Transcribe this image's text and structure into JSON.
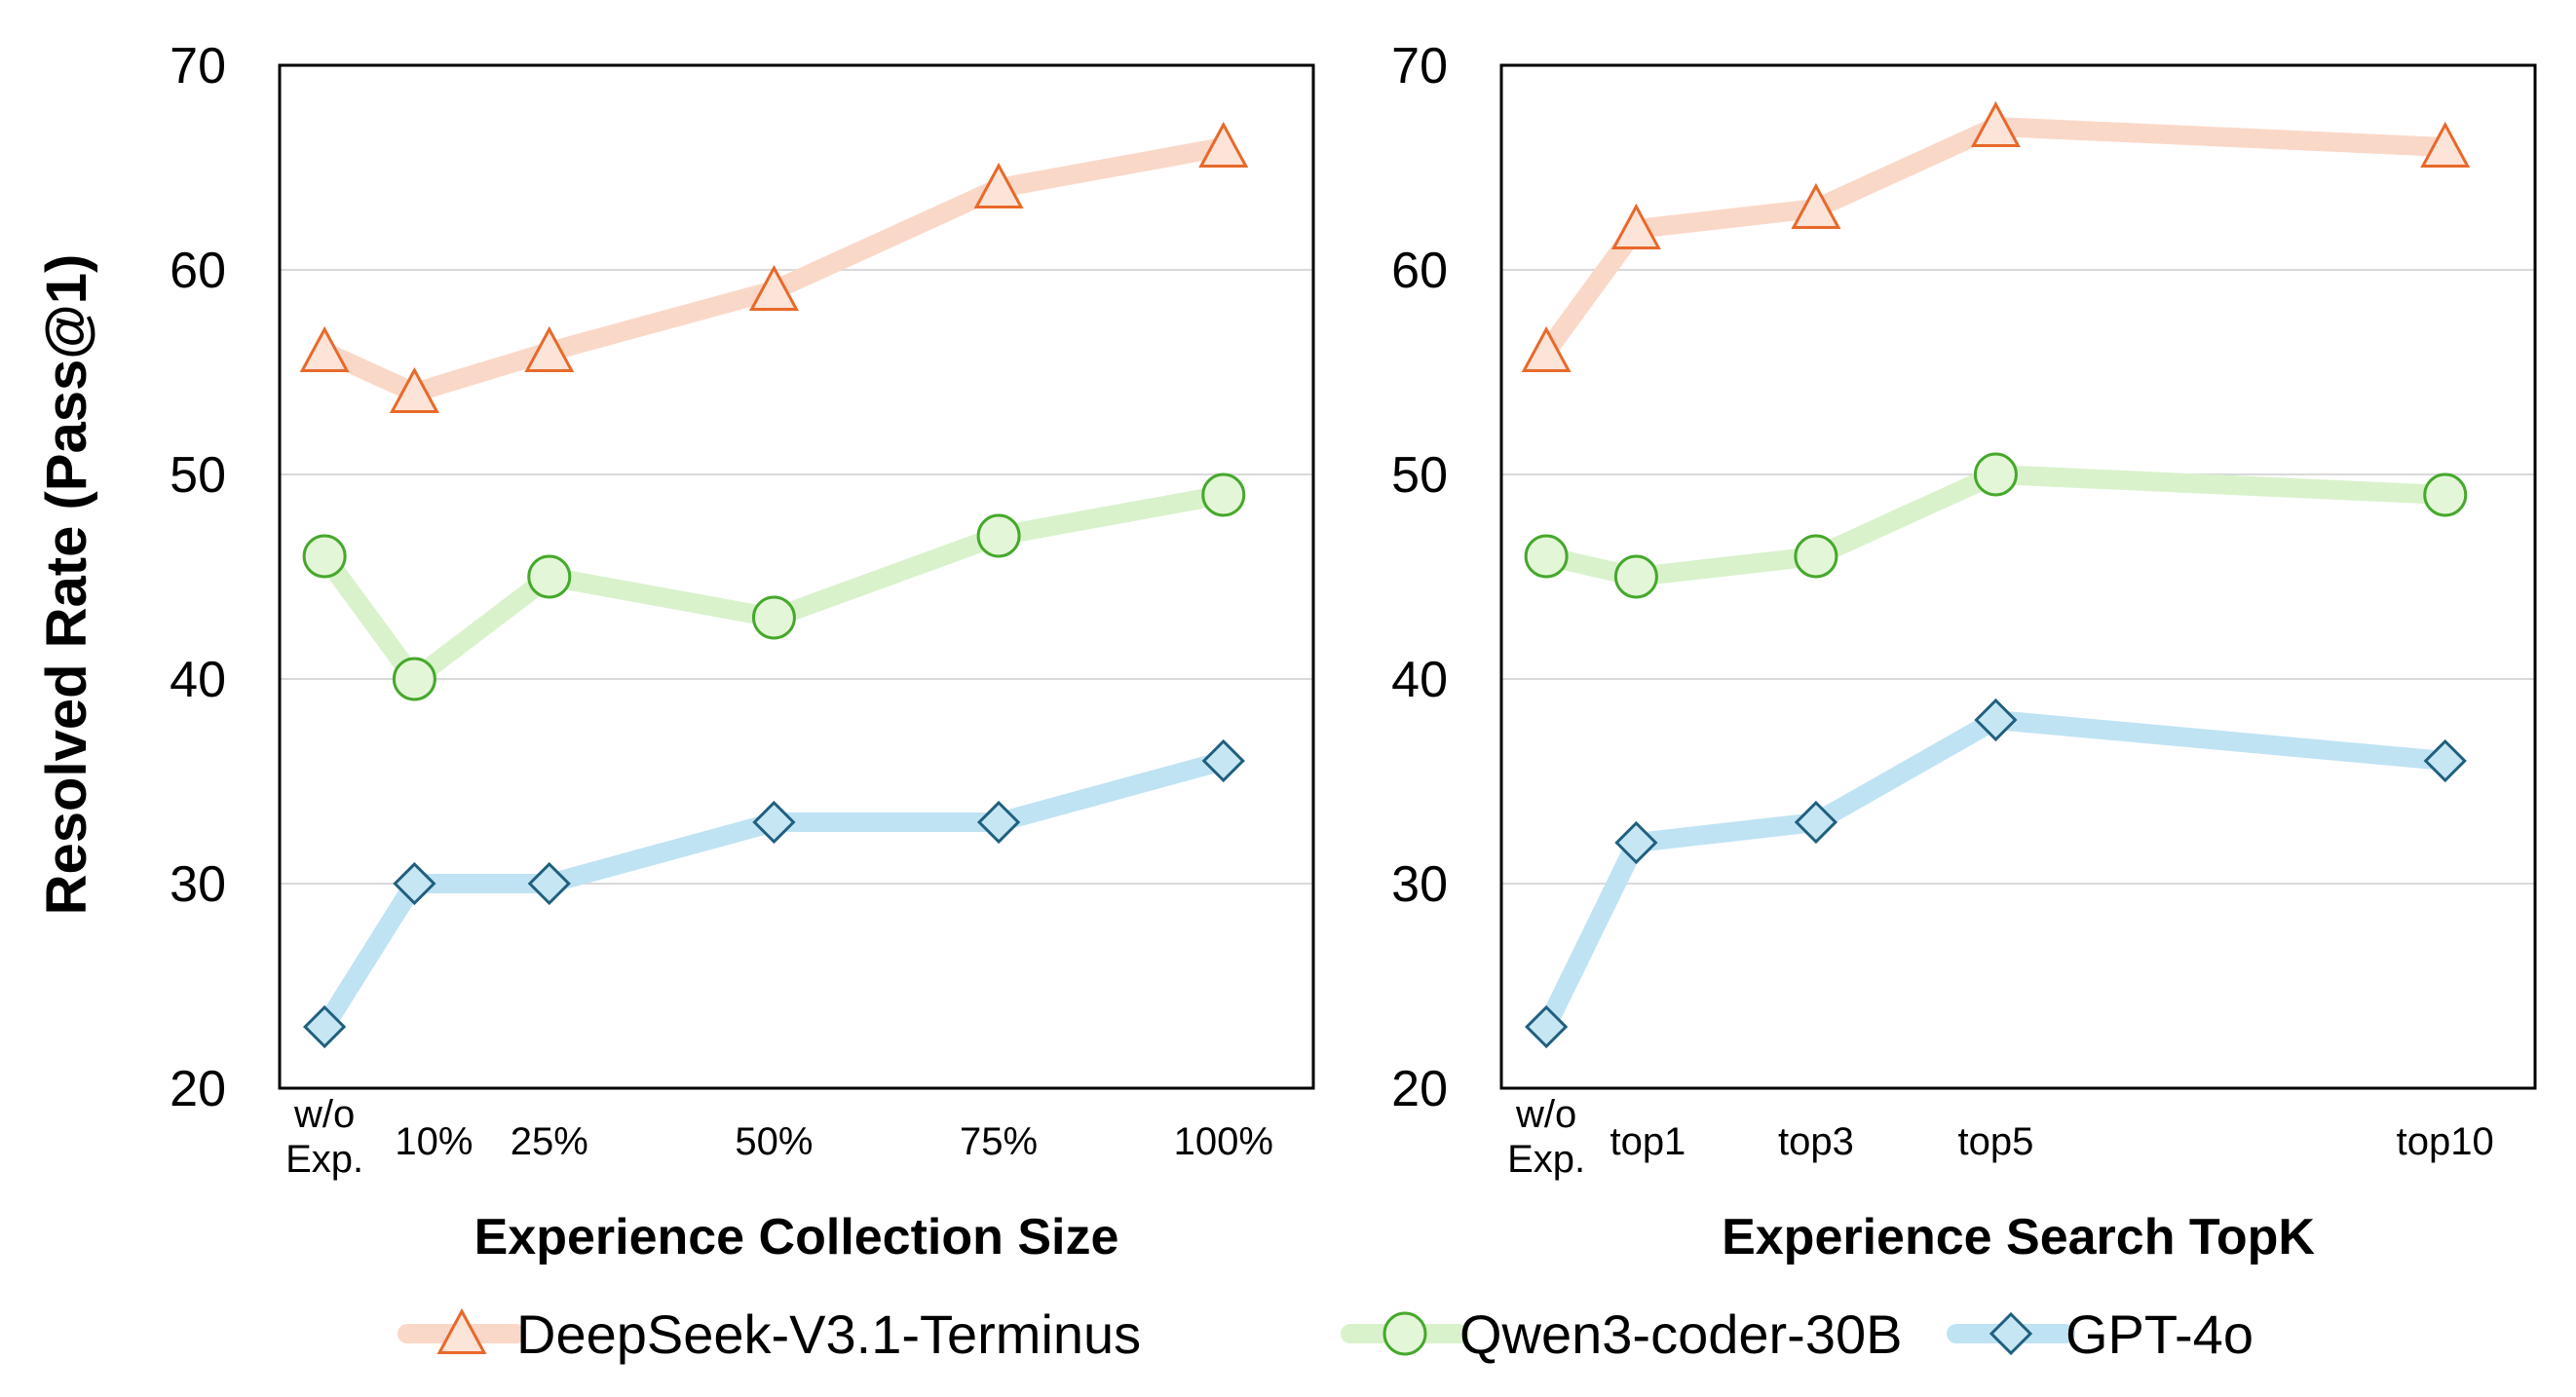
{
  "y_axis_label": "Resolved Rate (Pass@1)",
  "colors": {
    "DeepSeek": {
      "line": "#fad8c8",
      "marker_fill": "#fde4d8",
      "marker_stroke": "#e8692a"
    },
    "Qwen": {
      "line": "#d9f2cc",
      "marker_fill": "#e4f6d8",
      "marker_stroke": "#46a82c"
    },
    "GPT": {
      "line": "#bfe3f3",
      "marker_fill": "#c6e6f4",
      "marker_stroke": "#205f7e"
    }
  },
  "chart_data": [
    {
      "type": "line",
      "xlabel": "Experience Collection Size",
      "ylabel": "Resolved Rate (Pass@1)",
      "ylim": [
        20,
        70
      ],
      "yticks": [
        "20",
        "30",
        "40",
        "50",
        "60",
        "70"
      ],
      "categories": [
        "w/o Exp.",
        "10%",
        "25%",
        "50%",
        "75%",
        "100%"
      ],
      "x": [
        0,
        10,
        25,
        50,
        75,
        100
      ],
      "xlim": [
        -5,
        110
      ],
      "series": [
        {
          "name": "DeepSeek-V3.1-Terminus",
          "key": "DeepSeek",
          "marker": "triangle",
          "values": [
            56,
            54,
            56,
            59,
            64,
            66
          ]
        },
        {
          "name": "Qwen3-coder-30B",
          "key": "Qwen",
          "marker": "circle",
          "values": [
            46,
            40,
            45,
            43,
            47,
            49
          ]
        },
        {
          "name": "GPT-4o",
          "key": "GPT",
          "marker": "diamond",
          "values": [
            23,
            30,
            30,
            33,
            33,
            36
          ]
        }
      ]
    },
    {
      "type": "line",
      "xlabel": "Experience Search TopK",
      "ylabel": "Resolved Rate (Pass@1)",
      "ylim": [
        20,
        70
      ],
      "yticks": [
        "20",
        "30",
        "40",
        "50",
        "60",
        "70"
      ],
      "categories": [
        "w/o Exp.",
        "top1",
        "top3",
        "top5",
        "top10"
      ],
      "x": [
        0,
        1,
        3,
        5,
        10
      ],
      "xlim": [
        -0.5,
        11
      ],
      "series": [
        {
          "name": "DeepSeek-V3.1-Terminus",
          "key": "DeepSeek",
          "marker": "triangle",
          "values": [
            56,
            62,
            63,
            67,
            66
          ]
        },
        {
          "name": "Qwen3-coder-30B",
          "key": "Qwen",
          "marker": "circle",
          "values": [
            46,
            45,
            46,
            50,
            49
          ]
        },
        {
          "name": "GPT-4o",
          "key": "GPT",
          "marker": "diamond",
          "values": [
            23,
            32,
            33,
            38,
            36
          ]
        }
      ]
    }
  ],
  "legend": [
    {
      "label": "DeepSeek-V3.1-Terminus",
      "key": "DeepSeek",
      "marker": "triangle"
    },
    {
      "label": "Qwen3-coder-30B",
      "key": "Qwen",
      "marker": "circle"
    },
    {
      "label": "GPT-4o",
      "key": "GPT",
      "marker": "diamond"
    }
  ]
}
